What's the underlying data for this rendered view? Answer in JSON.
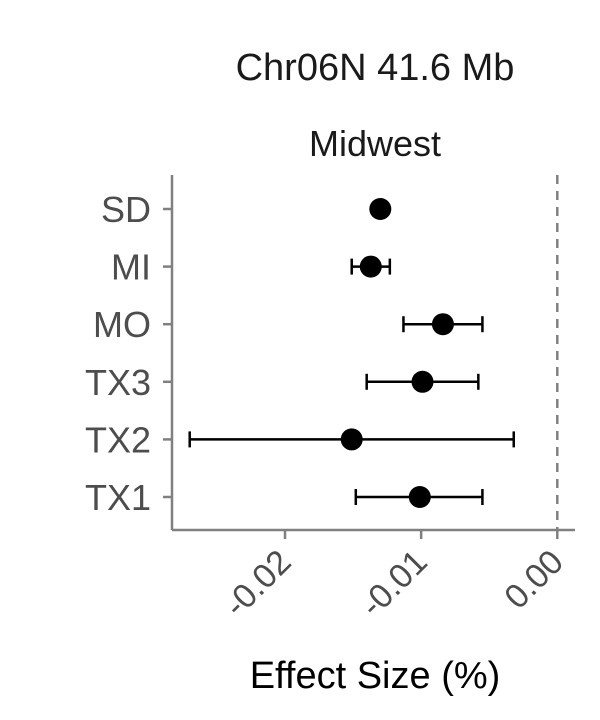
{
  "chart_data": {
    "type": "scatter",
    "title": "Chr06N 41.6 Mb",
    "subtitle": "Midwest",
    "xlabel": "Effect Size (%)",
    "ylabel": "",
    "xlim": [
      -0.0283,
      0.0013
    ],
    "x_ticks": [
      -0.02,
      -0.01,
      0.0
    ],
    "x_tick_labels": [
      "-0.02",
      "-0.01",
      "0.00"
    ],
    "reference_line": {
      "x": 0.0,
      "style": "dashed",
      "color": "#808080"
    },
    "grid": false,
    "categories": [
      "SD",
      "MI",
      "MO",
      "TX3",
      "TX2",
      "TX1"
    ],
    "points": [
      {
        "label": "SD",
        "estimate": -0.013,
        "lower": null,
        "upper": null
      },
      {
        "label": "MI",
        "estimate": -0.0137,
        "lower": -0.0151,
        "upper": -0.0123
      },
      {
        "label": "MO",
        "estimate": -0.0084,
        "lower": -0.0113,
        "upper": -0.0055
      },
      {
        "label": "TX3",
        "estimate": -0.0099,
        "lower": -0.014,
        "upper": -0.0058
      },
      {
        "label": "TX2",
        "estimate": -0.0151,
        "lower": -0.027,
        "upper": -0.0032
      },
      {
        "label": "TX1",
        "estimate": -0.0101,
        "lower": -0.0148,
        "upper": -0.0055
      }
    ],
    "colors": {
      "point": "#000000",
      "axis": "#808080",
      "tick_text": "#4d4d4d"
    }
  }
}
